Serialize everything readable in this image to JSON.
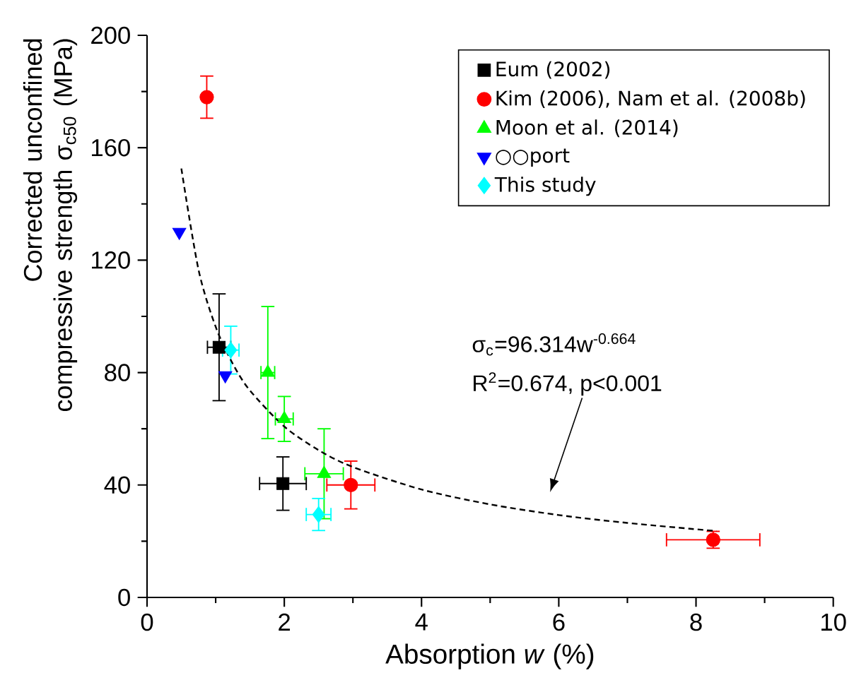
{
  "chart_data": {
    "type": "scatter",
    "xlabel": "Absorption *w* (%)",
    "ylabel": "Corrected unconfined compressive strength σ$_{c50}$ (MPa)",
    "xlim": [
      0,
      10
    ],
    "xticks": [
      0,
      2,
      4,
      6,
      8,
      10
    ],
    "ylim": [
      0,
      200
    ],
    "yticks": [
      0,
      40,
      80,
      120,
      160,
      200
    ],
    "legend": "top right",
    "grid": false,
    "series": [
      {
        "name": "Eum (2002)",
        "color": "#000000",
        "marker": "square",
        "x": [
          1.05,
          1.98
        ],
        "values": [
          89,
          40.5
        ],
        "errors": [
          19,
          9.5
        ],
        "xerrors": [
          0.17,
          0.34
        ]
      },
      {
        "name": "Kim (2006), Nam et al. (2008b)",
        "color": "#ff0000",
        "marker": "circle",
        "x": [
          0.87,
          2.97,
          8.25
        ],
        "values": [
          178,
          40,
          20.5
        ],
        "errors": [
          7.5,
          8.5,
          3
        ],
        "xerrors": [
          null,
          0.35,
          0.68
        ]
      },
      {
        "name": "Moon et al. (2014)",
        "color": "#00ff00",
        "marker": "triangle",
        "x": [
          1.76,
          2.0,
          2.58
        ],
        "values": [
          80,
          63.5,
          44
        ],
        "errors": [
          23.5,
          8,
          16
        ],
        "xerrors": [
          0.1,
          0.13,
          0.28
        ]
      },
      {
        "name": "○○port",
        "color": "#0000ff",
        "marker": "triangle-down",
        "x": [
          0.47,
          1.14
        ],
        "values": [
          130,
          79
        ]
      },
      {
        "name": "This study",
        "color": "#00ffff",
        "marker": "diamond",
        "x": [
          1.22,
          2.5
        ],
        "values": [
          88,
          29.5
        ],
        "errors": [
          8.5,
          5.7
        ],
        "xerrors": [
          0.12,
          0.18
        ]
      },
      {
        "type": "line",
        "color": "#000000",
        "marker": "none",
        "line_style": "dashed",
        "x": [
          0.5,
          0.75,
          1,
          1.25,
          1.5,
          2,
          2.5,
          3,
          4,
          5,
          6,
          7,
          8.3
        ],
        "values": [
          152.6,
          116.6,
          96.3,
          83.1,
          73.6,
          60.8,
          52.4,
          46.4,
          38.4,
          33.1,
          29.3,
          26.5,
          23.6
        ]
      }
    ],
    "annotations": [
      "σ$_{c}$=96.314w$^{-0.664}$",
      "R$^{2}$=0.674, p<0.001"
    ]
  }
}
